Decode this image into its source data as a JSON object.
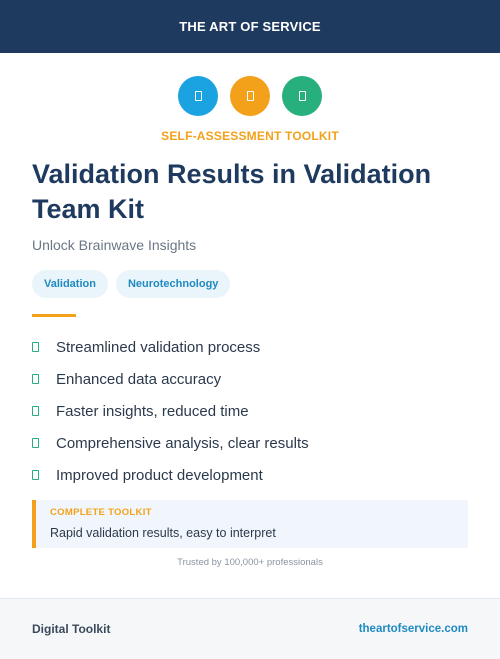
{
  "header": {
    "brand": "THE ART OF SERVICE"
  },
  "icons": [
    {
      "name": "doc-icon-blue",
      "color": "#1aa3e0"
    },
    {
      "name": "doc-icon-orange",
      "color": "#f3a11a"
    },
    {
      "name": "doc-icon-green",
      "color": "#27b07d"
    }
  ],
  "kicker": {
    "text": "SELF-ASSESSMENT TOOLKIT",
    "color": "#f3a11a"
  },
  "title": "Validation Results in Validation Team Kit",
  "subtitle": "Unlock Brainwave Insights",
  "tags": [
    "Validation",
    "Neurotechnology"
  ],
  "accent_color": "#f3a11a",
  "features": [
    "Streamlined validation process",
    "Enhanced data accuracy",
    "Faster insights, reduced time",
    "Comprehensive analysis, clear results",
    "Improved product development"
  ],
  "callout": {
    "label": "COMPLETE TOOLKIT",
    "text": "Rapid validation results, easy to interpret"
  },
  "trust": "Trusted by 100,000+ professionals",
  "footer": {
    "left": "Digital Toolkit",
    "right": "theartofservice.com"
  }
}
